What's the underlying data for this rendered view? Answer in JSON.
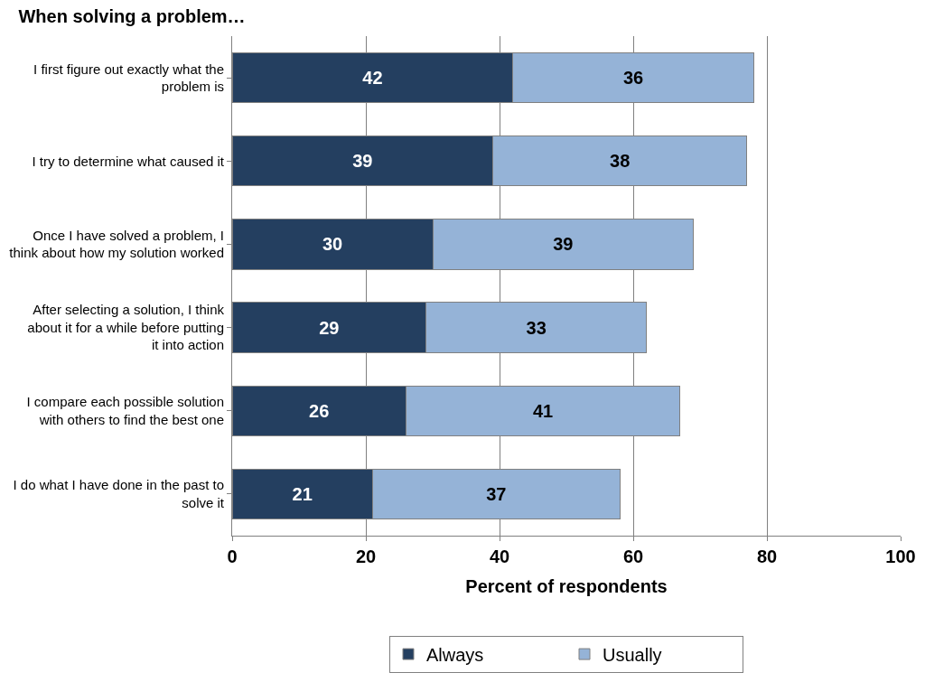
{
  "chart_data": {
    "type": "bar",
    "orientation": "horizontal",
    "stacked": true,
    "title": "When solving a problem…",
    "xlabel": "Percent of respondents",
    "categories": [
      "I first figure out exactly what the problem is",
      "I try to determine what caused it",
      "Once I have solved a problem, I think about how my solution worked",
      "After selecting a solution, I think about it for a while before putting it into action",
      "I compare each possible solution with others to find the best one",
      "I do what I have done in the past to solve it"
    ],
    "series": [
      {
        "name": "Always",
        "color": "#243f60",
        "values": [
          42,
          39,
          30,
          29,
          26,
          21
        ]
      },
      {
        "name": "Usually",
        "color": "#95b3d7",
        "values": [
          36,
          38,
          39,
          33,
          41,
          37
        ]
      }
    ],
    "xlim": [
      0,
      100
    ],
    "xticks": [
      0,
      20,
      40,
      60,
      80,
      100
    ],
    "grid": "x",
    "legend": "bottom",
    "data_labels": true
  }
}
